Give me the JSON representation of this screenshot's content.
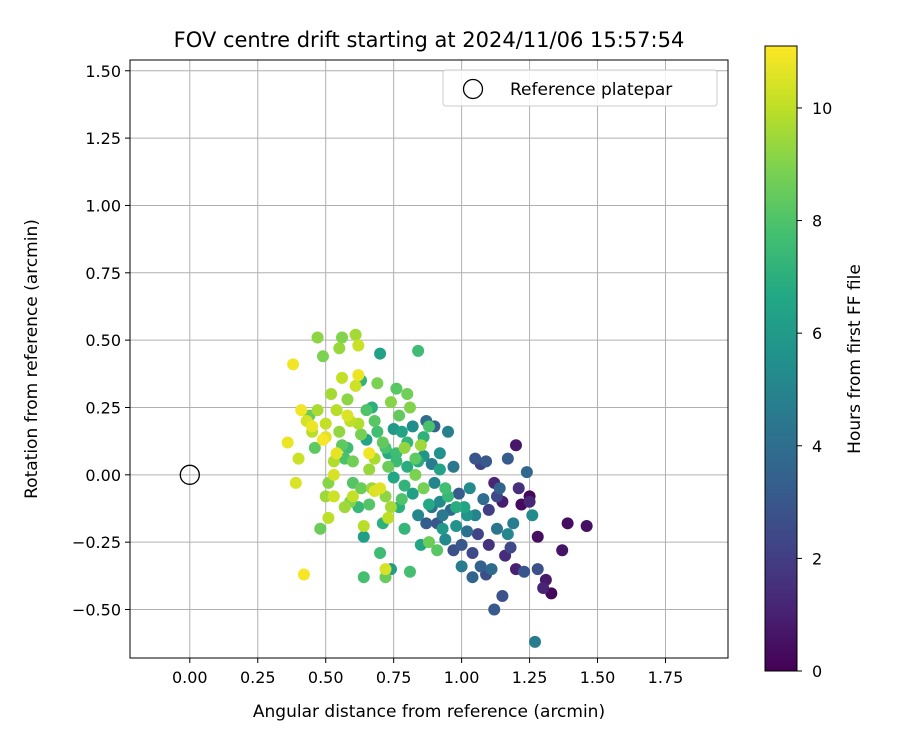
{
  "chart_data": {
    "type": "scatter",
    "title": "FOV centre drift starting at 2024/11/06 15:57:54",
    "xlabel": "Angular distance from reference (arcmin)",
    "ylabel": "Rotation from reference (arcmin)",
    "xlim": [
      -0.22,
      1.98
    ],
    "ylim": [
      -0.68,
      1.54
    ],
    "xticks": [
      "0.00",
      "0.25",
      "0.50",
      "0.75",
      "1.00",
      "1.25",
      "1.50",
      "1.75"
    ],
    "xtick_values": [
      0,
      0.25,
      0.5,
      0.75,
      1.0,
      1.25,
      1.5,
      1.75
    ],
    "yticks": [
      "−0.50",
      "−0.25",
      "0.00",
      "0.25",
      "0.50",
      "0.75",
      "1.00",
      "1.25",
      "1.50"
    ],
    "ytick_values": [
      -0.5,
      -0.25,
      0,
      0.25,
      0.5,
      0.75,
      1.0,
      1.25,
      1.5
    ],
    "grid": true,
    "legend": {
      "placement": "upper right",
      "entries": [
        "Reference platepar"
      ]
    },
    "reference_point": {
      "x": 0,
      "y": 0
    },
    "colorbar": {
      "label": "Hours from first FF file",
      "colormap": "viridis",
      "range": [
        0,
        11.1
      ],
      "ticks": [
        "0",
        "2",
        "4",
        "6",
        "8",
        "10"
      ],
      "tick_values": [
        0,
        2,
        4,
        6,
        8,
        10
      ]
    },
    "points": [
      [
        0.38,
        0.41,
        10.9
      ],
      [
        0.42,
        -0.37,
        11.0
      ],
      [
        0.36,
        0.12,
        10.8
      ],
      [
        0.39,
        -0.03,
        10.5
      ],
      [
        0.41,
        0.24,
        10.9
      ],
      [
        0.43,
        0.2,
        10.4
      ],
      [
        0.4,
        0.06,
        10.2
      ],
      [
        0.45,
        0.16,
        9.9
      ],
      [
        0.47,
        0.24,
        9.7
      ],
      [
        0.47,
        0.51,
        9.2
      ],
      [
        0.49,
        0.44,
        8.9
      ],
      [
        0.48,
        -0.2,
        8.6
      ],
      [
        0.5,
        0.19,
        10.1
      ],
      [
        0.5,
        0.14,
        10.6
      ],
      [
        0.51,
        -0.16,
        10.0
      ],
      [
        0.52,
        0.3,
        9.6
      ],
      [
        0.53,
        0.05,
        9.8
      ],
      [
        0.53,
        -0.08,
        10.3
      ],
      [
        0.54,
        0.24,
        9.9
      ],
      [
        0.55,
        0.47,
        9.4
      ],
      [
        0.56,
        0.51,
        9.0
      ],
      [
        0.56,
        0.11,
        8.3
      ],
      [
        0.57,
        -0.12,
        9.5
      ],
      [
        0.58,
        0.28,
        9.2
      ],
      [
        0.58,
        0.1,
        7.6
      ],
      [
        0.59,
        0.2,
        10.0
      ],
      [
        0.6,
        0.05,
        8.7
      ],
      [
        0.6,
        -0.08,
        10.1
      ],
      [
        0.61,
        0.33,
        10.3
      ],
      [
        0.61,
        0.52,
        9.6
      ],
      [
        0.62,
        0.48,
        10.2
      ],
      [
        0.62,
        0.37,
        10.8
      ],
      [
        0.63,
        0.35,
        7.2
      ],
      [
        0.63,
        0.15,
        8.8
      ],
      [
        0.64,
        -0.19,
        9.9
      ],
      [
        0.64,
        -0.23,
        6.2
      ],
      [
        0.64,
        -0.38,
        7.8
      ],
      [
        0.65,
        0.13,
        6.5
      ],
      [
        0.66,
        0.02,
        9.4
      ],
      [
        0.66,
        -0.11,
        8.1
      ],
      [
        0.67,
        0.25,
        7.0
      ],
      [
        0.68,
        0.06,
        9.7
      ],
      [
        0.68,
        -0.06,
        10.5
      ],
      [
        0.69,
        0.34,
        8.9
      ],
      [
        0.7,
        0.45,
        6.3
      ],
      [
        0.7,
        -0.29,
        7.6
      ],
      [
        0.71,
        0.12,
        8.4
      ],
      [
        0.72,
        -0.08,
        9.2
      ],
      [
        0.72,
        -0.35,
        10.4
      ],
      [
        0.72,
        -0.38,
        8.5
      ],
      [
        0.73,
        0.08,
        6.8
      ],
      [
        0.73,
        -0.16,
        10.0
      ],
      [
        0.74,
        0.27,
        9.1
      ],
      [
        0.74,
        -0.35,
        6.1
      ],
      [
        0.75,
        0.17,
        5.9
      ],
      [
        0.75,
        -0.01,
        6.6
      ],
      [
        0.76,
        0.32,
        8.2
      ],
      [
        0.76,
        0.05,
        7.5
      ],
      [
        0.77,
        -0.12,
        7.0
      ],
      [
        0.78,
        0.16,
        6.4
      ],
      [
        0.78,
        -0.09,
        8.0
      ],
      [
        0.79,
        0.1,
        9.3
      ],
      [
        0.79,
        -0.2,
        7.3
      ],
      [
        0.8,
        0.3,
        8.7
      ],
      [
        0.8,
        0.03,
        6.9
      ],
      [
        0.81,
        -0.36,
        7.8
      ],
      [
        0.81,
        0.25,
        9.0
      ],
      [
        0.82,
        0.18,
        5.4
      ],
      [
        0.82,
        -0.07,
        6.2
      ],
      [
        0.83,
        0.06,
        8.3
      ],
      [
        0.84,
        0.46,
        7.6
      ],
      [
        0.84,
        -0.15,
        5.1
      ],
      [
        0.85,
        0.11,
        9.5
      ],
      [
        0.85,
        -0.26,
        6.5
      ],
      [
        0.86,
        0.07,
        5.7
      ],
      [
        0.86,
        -0.05,
        8.8
      ],
      [
        0.87,
        0.2,
        3.9
      ],
      [
        0.87,
        -0.18,
        3.3
      ],
      [
        0.88,
        0.18,
        7.9
      ],
      [
        0.88,
        -0.25,
        8.6
      ],
      [
        0.89,
        0.04,
        4.6
      ],
      [
        0.89,
        -0.12,
        4.2
      ],
      [
        0.9,
        0.18,
        3.5
      ],
      [
        0.9,
        -0.03,
        5.0
      ],
      [
        0.91,
        -0.18,
        3.0
      ],
      [
        0.91,
        -0.28,
        8.2
      ],
      [
        0.92,
        -0.1,
        5.3
      ],
      [
        0.92,
        0.08,
        5.6
      ],
      [
        0.93,
        -0.2,
        6.0
      ],
      [
        0.93,
        -0.15,
        4.5
      ],
      [
        0.94,
        -0.24,
        5.2
      ],
      [
        0.95,
        0.16,
        4.8
      ],
      [
        0.95,
        -0.08,
        7.4
      ],
      [
        0.96,
        -0.13,
        3.8
      ],
      [
        0.97,
        0.03,
        4.4
      ],
      [
        0.97,
        -0.28,
        2.7
      ],
      [
        0.98,
        -0.19,
        5.6
      ],
      [
        0.99,
        -0.07,
        3.2
      ],
      [
        1.0,
        -0.34,
        4.6
      ],
      [
        1.0,
        -0.26,
        3.0
      ],
      [
        1.01,
        -0.12,
        6.5
      ],
      [
        1.02,
        -0.21,
        4.1
      ],
      [
        1.03,
        -0.05,
        5.3
      ],
      [
        1.04,
        -0.29,
        2.5
      ],
      [
        1.04,
        -0.38,
        3.6
      ],
      [
        1.05,
        0.06,
        2.9
      ],
      [
        1.05,
        -0.15,
        4.9
      ],
      [
        1.06,
        -0.22,
        2.2
      ],
      [
        1.07,
        -0.34,
        3.4
      ],
      [
        1.07,
        0.04,
        2.1
      ],
      [
        1.08,
        -0.09,
        4.0
      ],
      [
        1.09,
        -0.37,
        2.6
      ],
      [
        1.09,
        0.05,
        3.1
      ],
      [
        1.1,
        -0.13,
        2.0
      ],
      [
        1.1,
        -0.26,
        1.6
      ],
      [
        1.11,
        -0.35,
        3.8
      ],
      [
        1.12,
        -0.5,
        3.1
      ],
      [
        1.12,
        -0.03,
        1.2
      ],
      [
        1.13,
        -0.2,
        4.3
      ],
      [
        1.13,
        -0.08,
        2.4
      ],
      [
        1.14,
        -0.05,
        3.5
      ],
      [
        1.15,
        -0.45,
        2.8
      ],
      [
        1.15,
        -0.1,
        0.9
      ],
      [
        1.16,
        -0.3,
        1.4
      ],
      [
        1.17,
        0.06,
        3.2
      ],
      [
        1.17,
        -0.22,
        5.1
      ],
      [
        1.18,
        -0.27,
        2.4
      ],
      [
        1.19,
        -0.18,
        4.7
      ],
      [
        1.2,
        -0.35,
        1.0
      ],
      [
        1.2,
        0.11,
        0.7
      ],
      [
        1.21,
        -0.05,
        1.5
      ],
      [
        1.22,
        -0.11,
        0.3
      ],
      [
        1.23,
        -0.36,
        2.9
      ],
      [
        1.24,
        0.01,
        3.7
      ],
      [
        1.25,
        -0.08,
        0.2
      ],
      [
        1.25,
        -0.1,
        1.2
      ],
      [
        1.26,
        -0.15,
        5.3
      ],
      [
        1.27,
        -0.62,
        4.6
      ],
      [
        1.28,
        -0.23,
        0.4
      ],
      [
        1.28,
        -0.35,
        2.7
      ],
      [
        1.3,
        -0.42,
        1.1
      ],
      [
        1.31,
        -0.39,
        0.8
      ],
      [
        1.33,
        -0.44,
        0.2
      ],
      [
        1.37,
        -0.28,
        0.6
      ],
      [
        1.39,
        -0.18,
        0.4
      ],
      [
        1.46,
        -0.19,
        0.5
      ],
      [
        0.44,
        0.22,
        8.5
      ],
      [
        0.46,
        0.1,
        8.3
      ],
      [
        0.51,
        -0.03,
        9.1
      ],
      [
        0.55,
        0.16,
        9.3
      ],
      [
        0.57,
        0.06,
        7.9
      ],
      [
        0.6,
        -0.03,
        8.1
      ],
      [
        0.62,
        -0.12,
        7.4
      ],
      [
        0.65,
        0.24,
        8.0
      ],
      [
        0.67,
        -0.05,
        9.4
      ],
      [
        0.69,
        0.16,
        7.7
      ],
      [
        0.71,
        -0.18,
        7.1
      ],
      [
        0.73,
        0.03,
        8.6
      ],
      [
        0.77,
        0.22,
        8.4
      ],
      [
        0.79,
        -0.04,
        7.2
      ],
      [
        0.83,
        0.0,
        8.9
      ],
      [
        0.86,
        0.14,
        7.1
      ],
      [
        0.88,
        -0.11,
        6.7
      ],
      [
        0.92,
        0.02,
        6.4
      ],
      [
        0.94,
        -0.05,
        7.7
      ],
      [
        0.98,
        -0.12,
        6.9
      ],
      [
        1.02,
        -0.15,
        5.7
      ],
      [
        0.54,
        0.08,
        10.7
      ],
      [
        0.58,
        0.22,
        10.5
      ],
      [
        0.62,
        0.19,
        9.8
      ],
      [
        0.66,
        0.08,
        10.9
      ],
      [
        0.7,
        -0.05,
        10.6
      ],
      [
        0.74,
        -0.12,
        9.6
      ],
      [
        0.53,
        0.0,
        10.4
      ],
      [
        0.49,
        0.13,
        11.0
      ],
      [
        0.45,
        0.18,
        10.8
      ],
      [
        0.5,
        -0.08,
        9.5
      ],
      [
        0.56,
        0.36,
        10.1
      ],
      [
        0.59,
        -0.1,
        9.0
      ],
      [
        0.63,
        -0.05,
        8.6
      ],
      [
        0.68,
        0.2,
        8.2
      ],
      [
        0.72,
        0.1,
        7.9
      ],
      [
        0.76,
        0.08,
        7.6
      ],
      [
        0.8,
        0.12,
        7.3
      ],
      [
        0.84,
        0.05,
        6.8
      ]
    ]
  }
}
